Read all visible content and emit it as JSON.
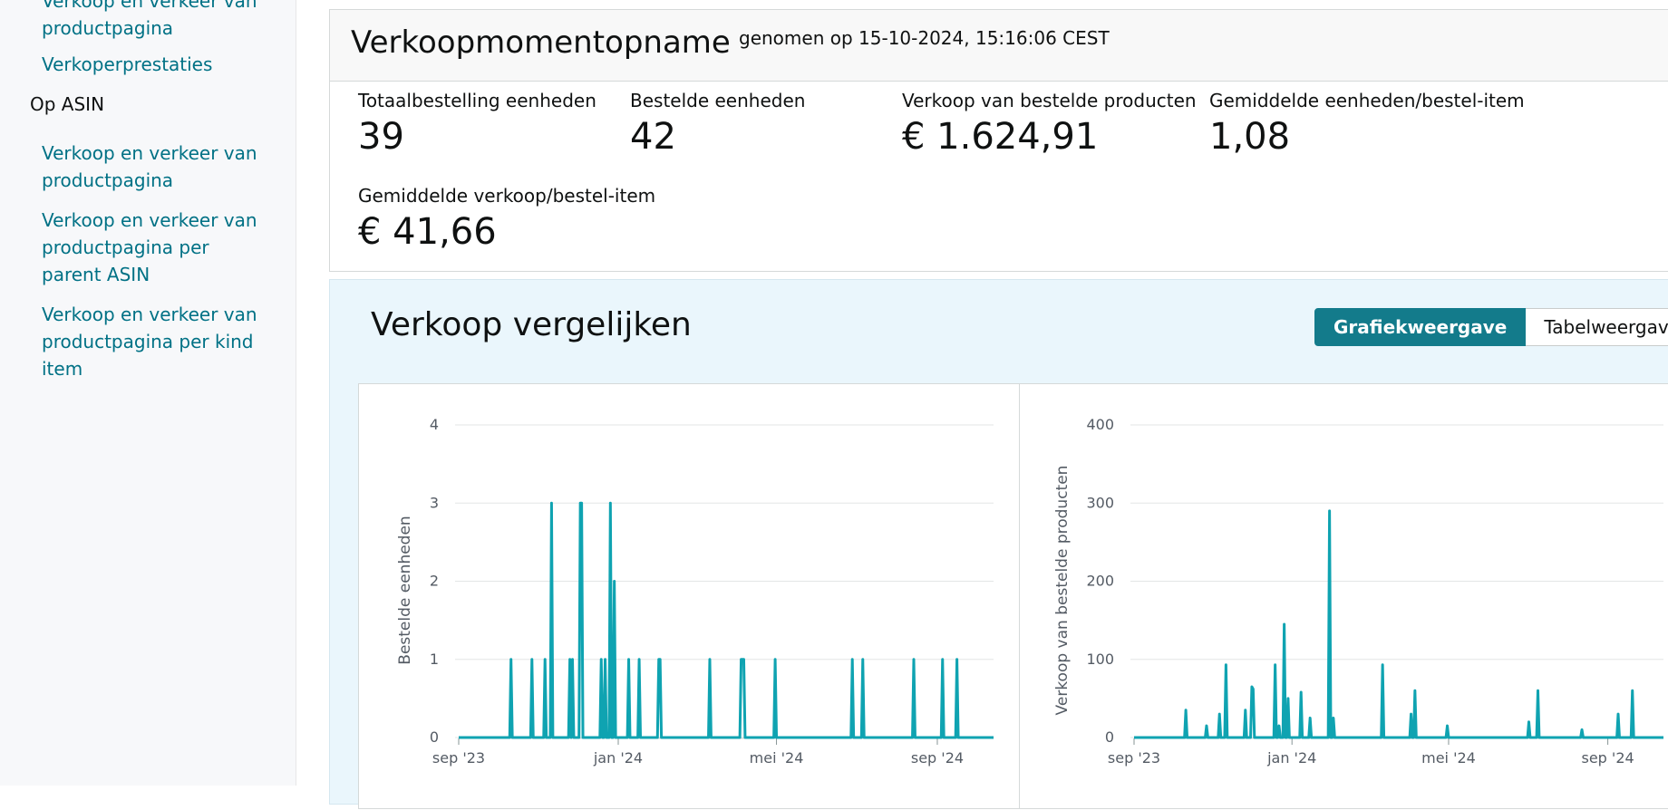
{
  "sidebar": {
    "partial_link": "Verkoop en verkeer van productpagina",
    "items": [
      {
        "label": "Verkoperprestaties"
      }
    ],
    "section_heading": "Op ASIN",
    "asin_items": [
      {
        "label": "Verkoop en verkeer van productpagina"
      },
      {
        "label": "Verkoop en verkeer van productpagina per parent ASIN"
      },
      {
        "label": "Verkoop en verkeer van productpagina per kind item"
      }
    ]
  },
  "snapshot": {
    "title": "Verkoopmomentopname",
    "subtitle": "genomen op 15-10-2024, 15:16:06 CEST",
    "metrics": [
      {
        "label": "Totaalbestelling eenheden",
        "value": "39"
      },
      {
        "label": "Bestelde eenheden",
        "value": "42"
      },
      {
        "label": "Verkoop van bestelde producten",
        "value": "€ 1.624,91"
      },
      {
        "label": "Gemiddelde eenheden/bestel-item",
        "value": "1,08"
      },
      {
        "label": "Gemiddelde verkoop/bestel-item",
        "value": "€ 41,66"
      }
    ]
  },
  "compare": {
    "title": "Verkoop vergelijken",
    "graph_view_label": "Grafiekweergave",
    "table_view_label": "Tabelweergave"
  },
  "colors": {
    "accent": "#137b8b",
    "series": "#0fa3b1",
    "link": "#007185"
  },
  "chart_data": [
    {
      "type": "line",
      "title": "",
      "xlabel": "",
      "ylabel": "Bestelde eenheden",
      "x_ticks": [
        "sep '23",
        "jan '24",
        "mei '24",
        "sep '24"
      ],
      "x_range": [
        "2023-09-01",
        "2024-10-14"
      ],
      "y_ticks": [
        "0",
        "1",
        "2",
        "3",
        "4"
      ],
      "ylim": [
        0,
        4
      ],
      "grid": true,
      "series": [
        {
          "points": [
            [
              "2023-10-11",
              1
            ],
            [
              "2023-10-27",
              1
            ],
            [
              "2023-11-06",
              1
            ],
            [
              "2023-11-11",
              3
            ],
            [
              "2023-11-25",
              1
            ],
            [
              "2023-11-27",
              1
            ],
            [
              "2023-12-03",
              3
            ],
            [
              "2023-12-04",
              3
            ],
            [
              "2023-12-19",
              1
            ],
            [
              "2023-12-22",
              1
            ],
            [
              "2023-12-26",
              3
            ],
            [
              "2023-12-29",
              2
            ],
            [
              "2024-01-09",
              1
            ],
            [
              "2024-01-17",
              1
            ],
            [
              "2024-02-01",
              1
            ],
            [
              "2024-02-02",
              1
            ],
            [
              "2024-03-11",
              1
            ],
            [
              "2024-04-04",
              1
            ],
            [
              "2024-04-05",
              1
            ],
            [
              "2024-04-06",
              1
            ],
            [
              "2024-04-30",
              1
            ],
            [
              "2024-06-28",
              1
            ],
            [
              "2024-07-06",
              1
            ],
            [
              "2024-08-14",
              1
            ],
            [
              "2024-09-05",
              1
            ],
            [
              "2024-09-16",
              1
            ]
          ]
        }
      ]
    },
    {
      "type": "line",
      "title": "",
      "xlabel": "",
      "ylabel": "Verkoop van bestelde producten",
      "x_ticks": [
        "sep '23",
        "jan '24",
        "mei '24",
        "sep '24"
      ],
      "x_range": [
        "2023-09-01",
        "2024-10-14"
      ],
      "y_ticks": [
        "0",
        "100",
        "200",
        "300",
        "400"
      ],
      "ylim": [
        0,
        400
      ],
      "grid": true,
      "series": [
        {
          "points": [
            [
              "2023-10-11",
              35
            ],
            [
              "2023-10-27",
              15
            ],
            [
              "2023-11-06",
              30
            ],
            [
              "2023-11-11",
              93
            ],
            [
              "2023-11-26",
              35
            ],
            [
              "2023-12-01",
              65
            ],
            [
              "2023-12-02",
              62
            ],
            [
              "2023-12-19",
              93
            ],
            [
              "2023-12-22",
              15
            ],
            [
              "2023-12-26",
              145
            ],
            [
              "2023-12-29",
              50
            ],
            [
              "2024-01-08",
              58
            ],
            [
              "2024-01-15",
              25
            ],
            [
              "2024-01-30",
              290
            ],
            [
              "2024-02-02",
              25
            ],
            [
              "2024-03-11",
              93
            ],
            [
              "2024-04-02",
              30
            ],
            [
              "2024-04-05",
              60
            ],
            [
              "2024-04-30",
              15
            ],
            [
              "2024-07-02",
              20
            ],
            [
              "2024-07-09",
              60
            ],
            [
              "2024-08-12",
              10
            ],
            [
              "2024-09-09",
              30
            ],
            [
              "2024-09-20",
              60
            ]
          ]
        }
      ]
    }
  ]
}
